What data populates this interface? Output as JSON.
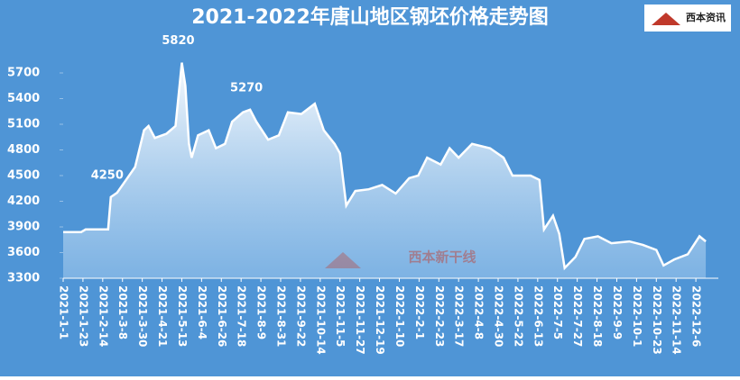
{
  "chart_data": {
    "type": "area",
    "title": "2021-2022年唐山地区钢坯价格走势图",
    "logo_text": "西本资讯",
    "watermark": "西本新干线",
    "x": [
      "2021-1-1",
      "2021-1-21",
      "2021-1-26",
      "2021-2-20",
      "2021-2-23",
      "2021-3-2",
      "2021-3-12",
      "2021-3-22",
      "2021-4-1",
      "2021-4-6",
      "2021-4-13",
      "2021-4-26",
      "2021-5-6",
      "2021-5-13",
      "2021-5-17",
      "2021-5-21",
      "2021-5-24",
      "2021-5-31",
      "2021-6-12",
      "2021-6-20",
      "2021-6-30",
      "2021-7-8",
      "2021-7-20",
      "2021-7-28",
      "2021-8-4",
      "2021-8-17",
      "2021-8-29",
      "2021-9-8",
      "2021-9-23",
      "2021-10-8",
      "2021-10-18",
      "2021-10-30",
      "2021-11-5",
      "2021-11-12",
      "2021-11-22",
      "2021-12-7",
      "2021-12-22",
      "2022-1-6",
      "2022-1-21",
      "2022-1-31",
      "2022-2-10",
      "2022-2-25",
      "2022-3-7",
      "2022-3-17",
      "2022-4-1",
      "2022-4-21",
      "2022-5-6",
      "2022-5-16",
      "2022-6-5",
      "2022-6-15",
      "2022-6-20",
      "2022-6-30",
      "2022-7-7",
      "2022-7-13",
      "2022-7-25",
      "2022-8-4",
      "2022-8-19",
      "2022-9-3",
      "2022-9-23",
      "2022-10-8",
      "2022-10-23",
      "2022-10-31",
      "2022-11-12",
      "2022-11-27",
      "2022-12-10",
      "2022-12-17"
    ],
    "series": [
      {
        "color": "#ffffff",
        "values": [
          3840,
          3840,
          3870,
          3870,
          4250,
          4300,
          4450,
          4600,
          5030,
          5080,
          4940,
          4990,
          5080,
          5820,
          5550,
          4870,
          4710,
          4970,
          5030,
          4820,
          4870,
          5130,
          5240,
          5270,
          5130,
          4920,
          4970,
          5240,
          5220,
          5340,
          5030,
          4870,
          4760,
          4150,
          4320,
          4340,
          4390,
          4290,
          4470,
          4500,
          4710,
          4630,
          4820,
          4710,
          4870,
          4820,
          4710,
          4500,
          4500,
          4450,
          3870,
          4030,
          3820,
          3420,
          3550,
          3760,
          3790,
          3710,
          3730,
          3690,
          3630,
          3450,
          3520,
          3580,
          3790,
          3730
        ]
      }
    ],
    "annotations": [
      {
        "x": "2021-2-23",
        "value": 4250
      },
      {
        "x": "2021-5-13",
        "value": 5820
      },
      {
        "x": "2021-7-28",
        "value": 5270
      }
    ],
    "xlim": [
      "2021-1-1",
      "2022-12-31"
    ],
    "xticks": [
      "2021-1-1",
      "2021-1-23",
      "2021-2-14",
      "2021-3-8",
      "2021-3-30",
      "2021-4-21",
      "2021-5-13",
      "2021-6-4",
      "2021-6-26",
      "2021-7-18",
      "2021-8-9",
      "2021-8-31",
      "2021-9-22",
      "2021-10-14",
      "2021-11-5",
      "2021-11-27",
      "2021-12-19",
      "2022-1-10",
      "2022-2-1",
      "2022-2-23",
      "2022-3-17",
      "2022-4-8",
      "2022-4-30",
      "2022-5-22",
      "2022-6-13",
      "2022-7-5",
      "2022-7-27",
      "2022-8-18",
      "2022-9-9",
      "2022-10-1",
      "2022-10-23",
      "2022-11-14",
      "2022-12-6"
    ],
    "ylim": [
      3300,
      6100
    ],
    "yticks": [
      3300,
      3600,
      3900,
      4200,
      4500,
      4800,
      5100,
      5400,
      5700
    ],
    "background": "#4f95d6"
  }
}
